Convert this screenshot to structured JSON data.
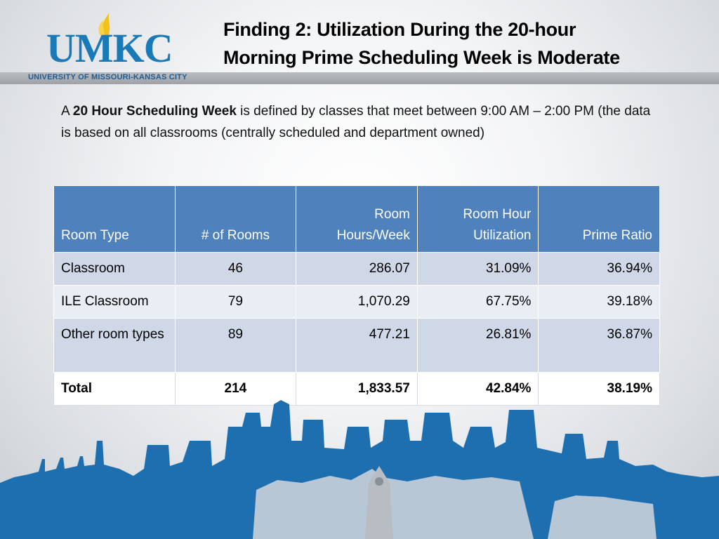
{
  "header": {
    "logo_text": "UMKC",
    "logo_subtitle": "UNIVERSITY OF MISSOURI-KANSAS CITY",
    "title_line1": "Finding 2: Utilization During the 20-hour",
    "title_line2": "Morning Prime Scheduling Week is Moderate"
  },
  "intro": {
    "prefix": "A ",
    "term": "20 Hour Scheduling Week",
    "rest": " is defined by classes that meet between 9:00 AM – 2:00 PM (the data is based on all classrooms (centrally scheduled and department owned)"
  },
  "table": {
    "headers": [
      "Room Type",
      "# of Rooms",
      "Room Hours/Week",
      "Room Hour Utilization",
      "Prime Ratio"
    ],
    "rows": [
      [
        "Classroom",
        "46",
        "286.07",
        "31.09%",
        "36.94%"
      ],
      [
        "ILE Classroom",
        "79",
        "1,070.29",
        "67.75%",
        "39.18%"
      ],
      [
        "Other room types",
        "89",
        "477.21",
        "26.81%",
        "36.87%"
      ],
      [
        "Total",
        "214",
        "1,833.57",
        "42.84%",
        "38.19%"
      ]
    ]
  },
  "colors": {
    "header_blue": "#4f81bd",
    "row_shaded": "#d0d8e8",
    "row_light": "#e9edf4",
    "logo_blue": "#1a7ab8",
    "logo_gold": "#f2c21b",
    "skyline_blue": "#1e6fb0"
  }
}
